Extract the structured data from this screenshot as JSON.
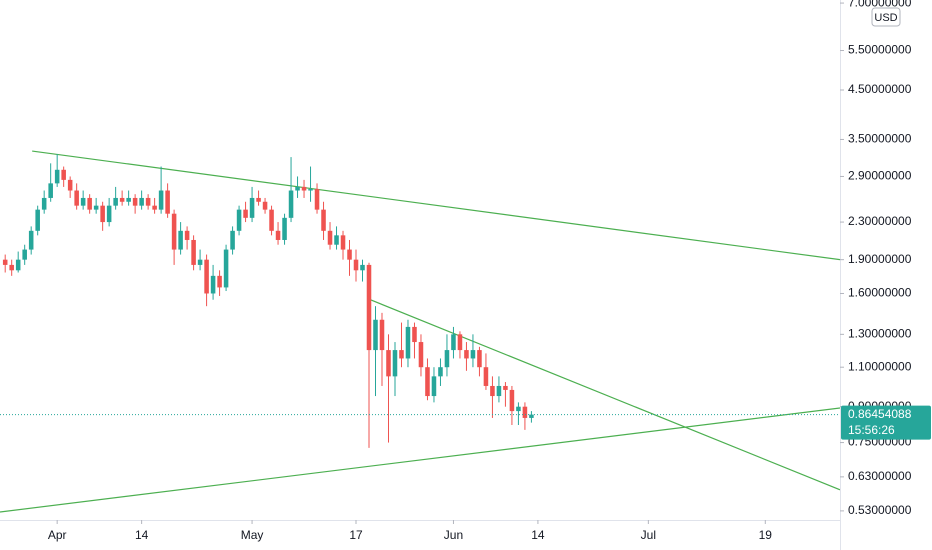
{
  "chart_data": {
    "type": "candlestick",
    "currency": "USD",
    "countdown": "15:56:26",
    "log_scale": true,
    "grid": false,
    "up_color": "#26a69a",
    "down_color": "#ef5350",
    "line_color": "#4caf50",
    "ylim": [
      0.506,
      7.11
    ],
    "yticks": [
      {
        "value": 0.53,
        "label": "0.53000000"
      },
      {
        "value": 0.63,
        "label": "0.63000000"
      },
      {
        "value": 0.75,
        "label": "0.75000000"
      },
      {
        "value": 0.9,
        "label": "0.90000000"
      },
      {
        "value": 1.1,
        "label": "1.10000000"
      },
      {
        "value": 1.3,
        "label": "1.30000000"
      },
      {
        "value": 1.6,
        "label": "1.60000000"
      },
      {
        "value": 1.9,
        "label": "1.90000000"
      },
      {
        "value": 2.3,
        "label": "2.30000000"
      },
      {
        "value": 2.9,
        "label": "2.90000000"
      },
      {
        "value": 3.5,
        "label": "3.50000000"
      },
      {
        "value": 4.5,
        "label": "4.50000000"
      },
      {
        "value": 5.5,
        "label": "5.50000000"
      },
      {
        "value": 7,
        "label": "7.00000000"
      }
    ],
    "xlim": [
      -8.8,
      120.5
    ],
    "xticks": [
      {
        "value": 0,
        "label": "Apr"
      },
      {
        "value": 13,
        "label": "14"
      },
      {
        "value": 30,
        "label": "May"
      },
      {
        "value": 46,
        "label": "17"
      },
      {
        "value": 61,
        "label": "Jun"
      },
      {
        "value": 74,
        "label": "14"
      },
      {
        "value": 91,
        "label": "Jul"
      },
      {
        "value": 109,
        "label": "19"
      }
    ],
    "x": [
      -8,
      -7,
      -6,
      -5,
      -4,
      -3,
      -2,
      -1,
      0,
      1,
      2,
      3,
      4,
      5,
      6,
      7,
      8,
      9,
      10,
      11,
      12,
      13,
      14,
      15,
      16,
      17,
      18,
      19,
      20,
      21,
      22,
      23,
      24,
      25,
      26,
      27,
      28,
      29,
      30,
      31,
      32,
      33,
      34,
      35,
      36,
      37,
      38,
      39,
      40,
      41,
      42,
      43,
      44,
      45,
      46,
      47,
      48,
      49,
      50,
      51,
      52,
      53,
      54,
      55,
      56,
      57,
      58,
      59,
      60,
      61,
      62,
      63,
      64,
      65,
      66,
      67,
      68,
      69,
      70,
      71,
      72,
      73
    ],
    "open": [
      1.9,
      1.85,
      1.8,
      1.9,
      2.0,
      2.2,
      2.45,
      2.6,
      2.8,
      3.0,
      2.85,
      2.7,
      2.5,
      2.6,
      2.45,
      2.5,
      2.3,
      2.5,
      2.6,
      2.55,
      2.6,
      2.5,
      2.6,
      2.5,
      2.45,
      2.7,
      2.4,
      2.0,
      2.2,
      2.1,
      1.85,
      1.9,
      1.6,
      1.75,
      1.65,
      2.0,
      2.2,
      2.45,
      2.35,
      2.6,
      2.55,
      2.45,
      2.2,
      2.1,
      2.35,
      2.7,
      2.75,
      2.7,
      2.72,
      2.45,
      2.2,
      2.05,
      2.15,
      2.0,
      1.9,
      1.8,
      1.85,
      1.2,
      1.4,
      1.2,
      1.05,
      1.2,
      1.15,
      1.35,
      1.25,
      1.1,
      0.95,
      1.05,
      1.1,
      1.2,
      1.3,
      1.2,
      1.15,
      1.2,
      1.1,
      1.0,
      0.95,
      1.0,
      0.98,
      0.88,
      0.9,
      0.85
    ],
    "high": [
      1.95,
      1.9,
      1.98,
      2.05,
      2.25,
      2.5,
      2.7,
      3.1,
      3.25,
      3.05,
      2.9,
      2.8,
      2.7,
      2.65,
      2.6,
      2.55,
      2.6,
      2.75,
      2.7,
      2.7,
      2.65,
      2.7,
      2.65,
      2.6,
      3.05,
      2.8,
      2.45,
      2.3,
      2.25,
      2.15,
      2.0,
      1.95,
      1.85,
      1.8,
      2.05,
      2.25,
      2.5,
      2.55,
      2.75,
      2.7,
      2.6,
      2.5,
      2.3,
      2.4,
      3.2,
      2.9,
      2.85,
      3.05,
      2.8,
      2.55,
      2.3,
      2.25,
      2.2,
      2.1,
      2.0,
      1.9,
      1.87,
      1.5,
      1.45,
      1.3,
      1.25,
      1.38,
      1.4,
      1.38,
      1.3,
      1.15,
      1.1,
      1.15,
      1.3,
      1.35,
      1.32,
      1.25,
      1.3,
      1.22,
      1.18,
      1.05,
      1.05,
      1.02,
      1.0,
      0.92,
      0.92,
      0.88
    ],
    "low": [
      1.78,
      1.75,
      1.78,
      1.85,
      1.95,
      2.15,
      2.4,
      2.55,
      2.75,
      2.75,
      2.6,
      2.45,
      2.45,
      2.4,
      2.4,
      2.2,
      2.25,
      2.45,
      2.5,
      2.5,
      2.4,
      2.45,
      2.45,
      2.4,
      2.4,
      2.35,
      1.85,
      1.95,
      2.0,
      1.8,
      1.8,
      1.5,
      1.55,
      1.58,
      1.62,
      1.95,
      2.15,
      2.3,
      2.3,
      2.5,
      2.4,
      2.15,
      2.05,
      2.05,
      2.3,
      2.6,
      2.6,
      2.55,
      2.4,
      2.1,
      2.0,
      2.0,
      1.9,
      1.75,
      1.7,
      1.7,
      0.73,
      0.95,
      1.0,
      0.75,
      0.95,
      1.1,
      1.1,
      1.15,
      1.05,
      0.93,
      0.92,
      1.0,
      1.05,
      1.15,
      1.15,
      1.08,
      1.1,
      1.05,
      0.98,
      0.85,
      0.92,
      0.9,
      0.82,
      0.82,
      0.8,
      0.83
    ],
    "close": [
      1.85,
      1.8,
      1.9,
      2.0,
      2.2,
      2.45,
      2.6,
      2.8,
      3.0,
      2.85,
      2.7,
      2.5,
      2.6,
      2.45,
      2.5,
      2.3,
      2.5,
      2.6,
      2.55,
      2.6,
      2.5,
      2.6,
      2.5,
      2.45,
      2.7,
      2.4,
      2.0,
      2.2,
      2.1,
      1.85,
      1.9,
      1.6,
      1.75,
      1.65,
      2.0,
      2.2,
      2.45,
      2.35,
      2.6,
      2.55,
      2.45,
      2.2,
      2.1,
      2.35,
      2.7,
      2.75,
      2.7,
      2.72,
      2.45,
      2.2,
      2.05,
      2.15,
      2.0,
      1.9,
      1.8,
      1.85,
      1.2,
      1.4,
      1.2,
      1.05,
      1.2,
      1.15,
      1.35,
      1.25,
      1.1,
      0.95,
      1.05,
      1.1,
      1.2,
      1.3,
      1.2,
      1.15,
      1.2,
      1.1,
      1.0,
      0.95,
      1.0,
      0.98,
      0.88,
      0.9,
      0.85,
      0.86454088
    ],
    "trendlines": [
      {
        "x": [
          -3.85,
          120.5
        ],
        "y": [
          3.3,
          1.9
        ]
      },
      {
        "x": [
          48.2,
          120.5
        ],
        "y": [
          1.55,
          0.59
        ]
      },
      {
        "x": [
          -8.8,
          120.5
        ],
        "y": [
          0.527,
          0.894
        ]
      }
    ]
  }
}
